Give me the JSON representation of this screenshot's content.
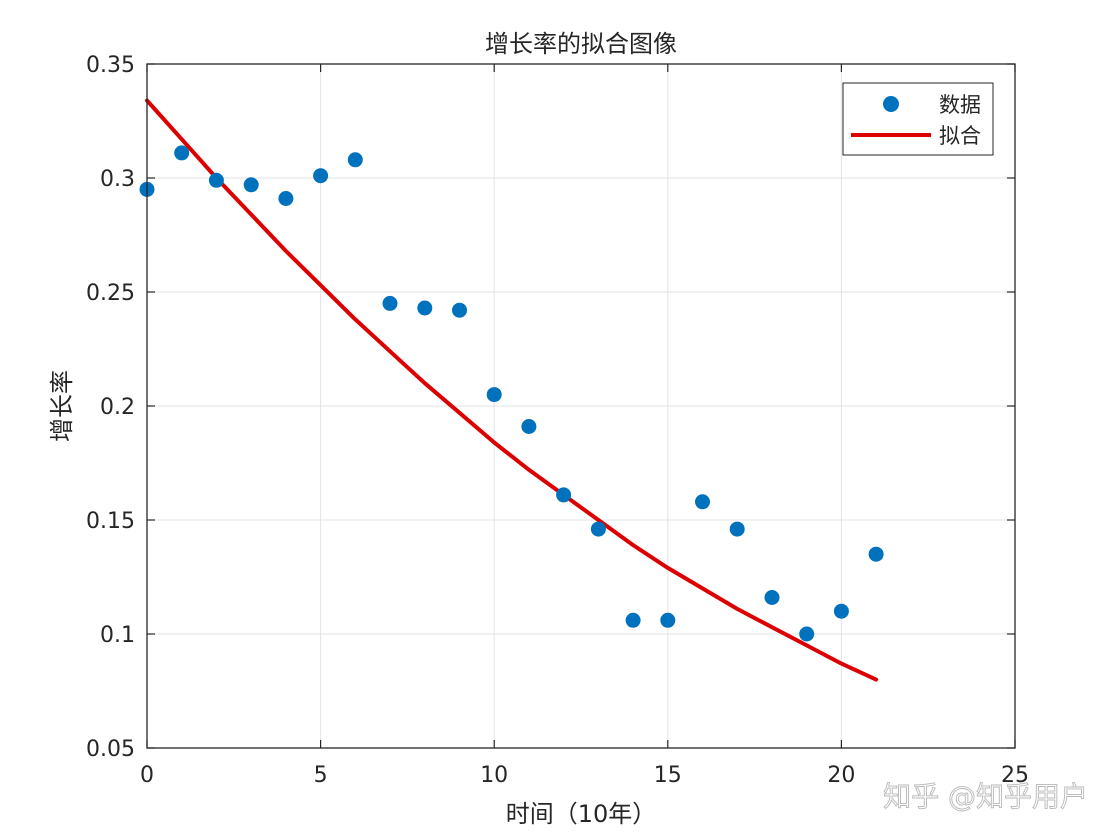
{
  "chart_data": {
    "type": "scatter",
    "title": "增长率的拟合图像",
    "xlabel": "时间（10年）",
    "ylabel": "增长率",
    "xlim": [
      0,
      25
    ],
    "ylim": [
      0.05,
      0.35
    ],
    "xticks": [
      0,
      5,
      10,
      15,
      20,
      25
    ],
    "xtick_labels": [
      "0",
      "5",
      "10",
      "15",
      "20",
      "25"
    ],
    "yticks": [
      0.05,
      0.1,
      0.15,
      0.2,
      0.25,
      0.3,
      0.35
    ],
    "ytick_labels": [
      "0.05",
      "0.1",
      "0.15",
      "0.2",
      "0.25",
      "0.3",
      "0.35"
    ],
    "grid": true,
    "legend_position": "top-right",
    "series": [
      {
        "name": "数据",
        "kind": "scatter",
        "color": "#0072BD",
        "x": [
          0,
          1,
          2,
          3,
          4,
          5,
          6,
          7,
          8,
          9,
          10,
          11,
          12,
          13,
          14,
          15,
          16,
          17,
          18,
          19,
          20,
          21
        ],
        "y": [
          0.295,
          0.311,
          0.299,
          0.297,
          0.291,
          0.301,
          0.308,
          0.245,
          0.243,
          0.242,
          0.205,
          0.191,
          0.161,
          0.146,
          0.106,
          0.106,
          0.158,
          0.146,
          0.116,
          0.1,
          0.11,
          0.135
        ]
      },
      {
        "name": "拟合",
        "kind": "line",
        "color": "#DD0000",
        "x": [
          0,
          1,
          2,
          3,
          4,
          5,
          6,
          7,
          8,
          9,
          10,
          11,
          12,
          13,
          14,
          15,
          16,
          17,
          18,
          19,
          20,
          21
        ],
        "y": [
          0.334,
          0.317,
          0.3,
          0.284,
          0.268,
          0.253,
          0.238,
          0.224,
          0.21,
          0.197,
          0.184,
          0.172,
          0.161,
          0.15,
          0.139,
          0.129,
          0.12,
          0.111,
          0.103,
          0.095,
          0.087,
          0.08
        ]
      }
    ]
  },
  "watermark": "知乎 @知乎用户"
}
